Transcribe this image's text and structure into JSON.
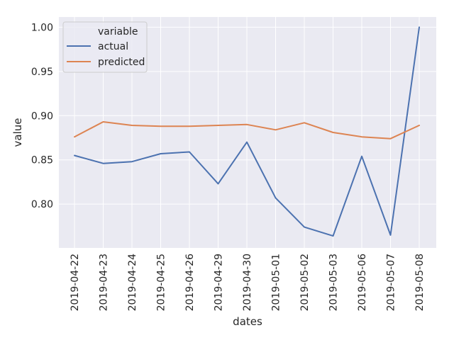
{
  "chart_data": {
    "type": "line",
    "xlabel": "dates",
    "ylabel": "value",
    "categories": [
      "2019-04-22",
      "2019-04-23",
      "2019-04-24",
      "2019-04-25",
      "2019-04-26",
      "2019-04-29",
      "2019-04-30",
      "2019-05-01",
      "2019-05-02",
      "2019-05-03",
      "2019-05-06",
      "2019-05-07",
      "2019-05-08"
    ],
    "series": [
      {
        "name": "actual",
        "color": "#4c72b0",
        "values": [
          0.855,
          0.846,
          0.848,
          0.857,
          0.859,
          0.823,
          0.87,
          0.807,
          0.774,
          0.764,
          0.854,
          0.765,
          1.0
        ]
      },
      {
        "name": "predicted",
        "color": "#dd8452",
        "values": [
          0.876,
          0.893,
          0.889,
          0.888,
          0.888,
          0.889,
          0.89,
          0.884,
          0.892,
          0.881,
          0.876,
          0.874,
          0.889
        ]
      }
    ],
    "ylim": [
      0.7505,
      1.0115
    ],
    "yticks": [
      0.8,
      0.85,
      0.9,
      0.95,
      1.0
    ],
    "ytick_labels": [
      "0.80",
      "0.85",
      "0.90",
      "0.95",
      "1.00"
    ],
    "grid": true,
    "legend": {
      "title": "variable",
      "position": "top-left"
    },
    "colors": {
      "background": "#eaeaf2",
      "grid": "#ffffff"
    }
  }
}
